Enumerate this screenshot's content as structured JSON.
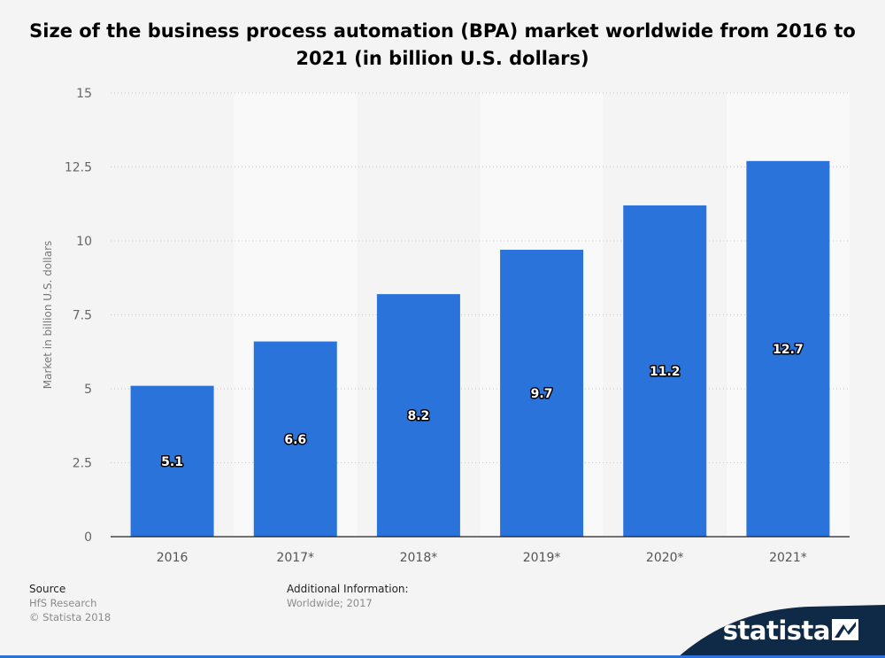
{
  "title": "Size of the business process automation (BPA) market worldwide from 2016 to 2021 (in billion U.S. dollars)",
  "chart_data": {
    "type": "bar",
    "categories": [
      "2016",
      "2017*",
      "2018*",
      "2019*",
      "2020*",
      "2021*"
    ],
    "values": [
      5.1,
      6.6,
      8.2,
      9.7,
      11.2,
      12.7
    ],
    "value_labels": [
      "5.1",
      "6.6",
      "8.2",
      "9.7",
      "11.2",
      "12.7"
    ],
    "ylabel": "Market in billion U.S. dollars",
    "xlabel": "",
    "ylim": [
      0,
      15
    ],
    "yticks": [
      0,
      2.5,
      5,
      7.5,
      10,
      12.5,
      15
    ],
    "ytick_labels": [
      "0",
      "2.5",
      "5",
      "7.5",
      "10",
      "12.5",
      "15"
    ],
    "grid": true,
    "bar_color": "#2a73db"
  },
  "footer": {
    "source_label": "Source",
    "source_lines": [
      "HfS Research",
      "© Statista 2018"
    ],
    "info_label": "Additional Information:",
    "info_value": "Worldwide; 2017"
  },
  "brand": {
    "name": "statista",
    "icon": "statista-flag-icon",
    "color": "#0e2a47"
  }
}
